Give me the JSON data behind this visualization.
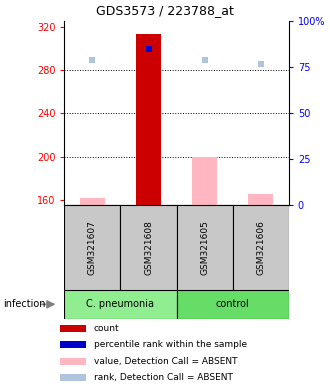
{
  "title": "GDS3573 / 223788_at",
  "samples": [
    "GSM321607",
    "GSM321608",
    "GSM321605",
    "GSM321606"
  ],
  "ylim_left": [
    155,
    325
  ],
  "ylim_right": [
    0,
    100
  ],
  "yticks_left": [
    160,
    200,
    240,
    280,
    320
  ],
  "yticks_right": [
    0,
    25,
    50,
    75,
    100
  ],
  "ytick_labels_right": [
    "0",
    "25",
    "50",
    "75",
    "100%"
  ],
  "bar_values": [
    161.5,
    313.0,
    200.0,
    166.0
  ],
  "absent_mask": [
    true,
    false,
    true,
    true
  ],
  "bar_color_present": "#CC0000",
  "bar_color_absent": "#FFB6C1",
  "rank_values_pct": [
    79,
    85,
    79,
    77
  ],
  "rank_absent_mask": [
    true,
    false,
    true,
    true
  ],
  "rank_color_present": "#0000CC",
  "rank_color_absent": "#B0C4DE",
  "grid_yticks": [
    200,
    240,
    280
  ],
  "legend_items": [
    {
      "color": "#CC0000",
      "label": "count"
    },
    {
      "color": "#0000CC",
      "label": "percentile rank within the sample"
    },
    {
      "color": "#FFB6C1",
      "label": "value, Detection Call = ABSENT"
    },
    {
      "color": "#B0C4DE",
      "label": "rank, Detection Call = ABSENT"
    }
  ],
  "group_label": "infection",
  "group_info": [
    {
      "name": "C. pneumonia",
      "start": 0,
      "end": 2,
      "color": "#90EE90"
    },
    {
      "name": "control",
      "start": 2,
      "end": 4,
      "color": "#66DD66"
    }
  ],
  "sample_box_color": "#C8C8C8",
  "bar_width": 0.45
}
